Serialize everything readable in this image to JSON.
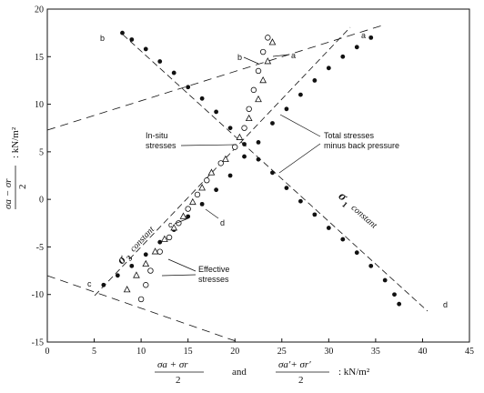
{
  "chart_data": {
    "type": "scatter",
    "xlabel": {
      "part1_num": "σa + σr",
      "part1_den": "2",
      "and": "and",
      "part2_num": "σa′+ σr′",
      "part2_den": "2",
      "unit": ": kN/m²"
    },
    "ylabel": {
      "num": "σa − σr",
      "den": "2",
      "unit": ": kN/m²"
    },
    "xlim": [
      0,
      45
    ],
    "ylim": [
      -15,
      20
    ],
    "x_ticks": [
      "0",
      "5",
      "10",
      "15",
      "20",
      "25",
      "30",
      "35",
      "40",
      "45"
    ],
    "y_ticks": [
      "20",
      "15",
      "10",
      "5",
      "0",
      "-5",
      "-10",
      "-15"
    ],
    "grid": false,
    "annotations": {
      "insitu": [
        "In-situ",
        "stresses"
      ],
      "total": [
        "Total stresses",
        "minus back pressure"
      ],
      "effective": [
        "Effective",
        "stresses"
      ],
      "sigma3": "σ",
      "sigma3_sub": "3",
      "sigma3_word": "constant",
      "sigma1": "σ",
      "sigma1_sub": "1",
      "sigma1_word": "constant"
    },
    "point_labels": {
      "a_top": "a",
      "b_top": "b",
      "c_low": "c",
      "d_low": "d",
      "b_eff": "b",
      "a_eff": "a",
      "c_eff": "c",
      "d_eff": "d",
      "c_total": "c",
      "d_total": "d"
    },
    "series": [
      {
        "marker": "filled-circle",
        "points": [
          [
            6,
            -9
          ],
          [
            7.5,
            -8
          ],
          [
            9,
            -7
          ],
          [
            10.5,
            -5.8
          ],
          [
            12,
            -4.5
          ],
          [
            13.5,
            -3.2
          ],
          [
            15,
            -1.8
          ],
          [
            16.5,
            -0.5
          ],
          [
            18,
            1
          ],
          [
            19.5,
            2.5
          ],
          [
            21,
            4.5
          ],
          [
            22.5,
            6
          ],
          [
            24,
            8
          ],
          [
            25.5,
            9.5
          ],
          [
            27,
            11
          ],
          [
            28.5,
            12.5
          ],
          [
            30,
            13.8
          ],
          [
            31.5,
            15
          ],
          [
            33,
            16
          ],
          [
            34.5,
            17
          ]
        ]
      },
      {
        "marker": "filled-circle",
        "points": [
          [
            8,
            17.5
          ],
          [
            9,
            16.8
          ],
          [
            10.5,
            15.8
          ],
          [
            12,
            14.5
          ],
          [
            13.5,
            13.3
          ],
          [
            15,
            11.8
          ],
          [
            16.5,
            10.6
          ],
          [
            18,
            9.2
          ],
          [
            19.5,
            7.5
          ],
          [
            21,
            5.8
          ],
          [
            22.5,
            4.2
          ],
          [
            24,
            2.8
          ],
          [
            25.5,
            1.2
          ],
          [
            27,
            -0.2
          ],
          [
            28.5,
            -1.6
          ],
          [
            30,
            -3
          ],
          [
            31.5,
            -4.2
          ],
          [
            33,
            -5.6
          ],
          [
            34.5,
            -7
          ],
          [
            36,
            -8.5
          ],
          [
            37,
            -10
          ],
          [
            37.5,
            -11
          ]
        ]
      },
      {
        "marker": "open-circle",
        "points": [
          [
            10,
            -10.5
          ],
          [
            10.5,
            -9
          ],
          [
            11,
            -7.5
          ],
          [
            12,
            -5.5
          ],
          [
            13,
            -4
          ],
          [
            14,
            -2.5
          ],
          [
            15,
            -1
          ],
          [
            16,
            0.5
          ],
          [
            17,
            2
          ],
          [
            18.5,
            3.8
          ],
          [
            20,
            5.5
          ],
          [
            21,
            7.5
          ],
          [
            21.5,
            9.5
          ],
          [
            22,
            11.5
          ],
          [
            22.5,
            13.5
          ],
          [
            23,
            15.5
          ],
          [
            23.5,
            17
          ]
        ]
      },
      {
        "marker": "open-triangle",
        "points": [
          [
            8.5,
            -9.5
          ],
          [
            9.5,
            -8
          ],
          [
            10.5,
            -6.8
          ],
          [
            11.5,
            -5.5
          ],
          [
            12.5,
            -4.2
          ],
          [
            13.5,
            -3
          ],
          [
            14.5,
            -1.8
          ],
          [
            15.5,
            -0.3
          ],
          [
            16.5,
            1.2
          ],
          [
            17.5,
            2.8
          ],
          [
            19,
            4.2
          ],
          [
            20.5,
            6.5
          ],
          [
            21.5,
            8.5
          ],
          [
            22.5,
            10.5
          ],
          [
            23,
            12.5
          ],
          [
            23.5,
            14.5
          ],
          [
            24,
            16.5
          ]
        ]
      }
    ]
  }
}
